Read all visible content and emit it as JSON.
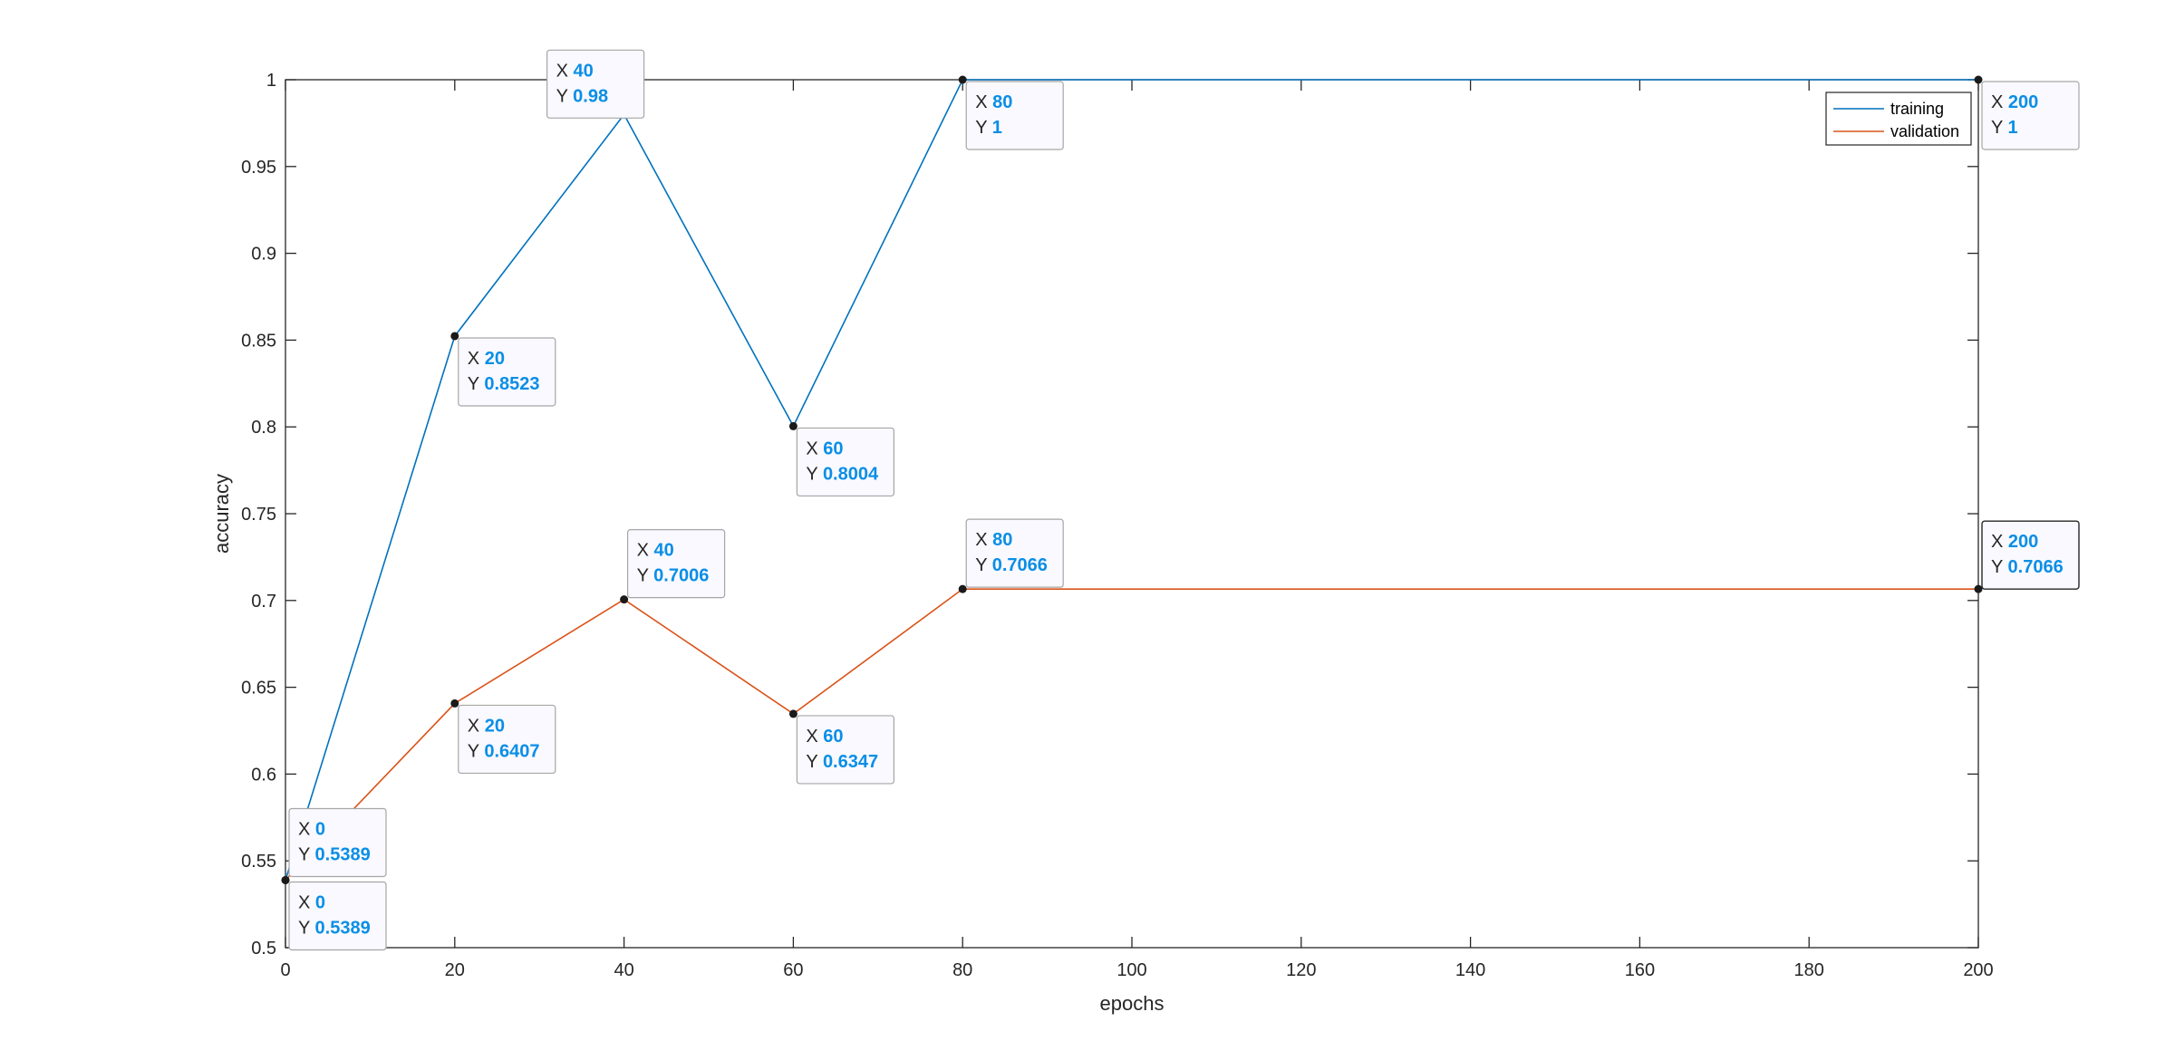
{
  "chart_data": {
    "type": "line",
    "xlabel": "epochs",
    "ylabel": "accuracy",
    "xlim": [
      0,
      200
    ],
    "ylim": [
      0.5,
      1
    ],
    "xticks": [
      0,
      20,
      40,
      60,
      80,
      100,
      120,
      140,
      160,
      180,
      200
    ],
    "yticks": [
      0.5,
      0.55,
      0.6,
      0.65,
      0.7,
      0.75,
      0.8,
      0.85,
      0.9,
      0.95,
      1
    ],
    "grid": false,
    "legend_position": "top-right",
    "series": [
      {
        "name": "training",
        "color": "#0072bd",
        "x": [
          0,
          20,
          40,
          60,
          80,
          200
        ],
        "y": [
          0.5389,
          0.8523,
          0.98,
          0.8004,
          1,
          1
        ]
      },
      {
        "name": "validation",
        "color": "#d95319",
        "x": [
          0,
          20,
          40,
          60,
          80,
          200
        ],
        "y": [
          0.5389,
          0.6407,
          0.7006,
          0.6347,
          0.7066,
          0.7066
        ]
      }
    ],
    "datatips": [
      {
        "series": "training",
        "x_text": "0",
        "y_text": "0.5389",
        "placement": "above-right"
      },
      {
        "series": "training",
        "x_text": "20",
        "y_text": "0.8523",
        "placement": "below-right"
      },
      {
        "series": "training",
        "x_text": "40",
        "y_text": "0.98",
        "placement": "above-left"
      },
      {
        "series": "training",
        "x_text": "60",
        "y_text": "0.8004",
        "placement": "below-right"
      },
      {
        "series": "training",
        "x_text": "80",
        "y_text": "1",
        "placement": "below-right"
      },
      {
        "series": "training",
        "x_text": "200",
        "y_text": "1",
        "placement": "below-right"
      },
      {
        "series": "validation",
        "x_text": "0",
        "y_text": "0.5389",
        "placement": "below-right"
      },
      {
        "series": "validation",
        "x_text": "20",
        "y_text": "0.6407",
        "placement": "below-right"
      },
      {
        "series": "validation",
        "x_text": "40",
        "y_text": "0.7006",
        "placement": "above-right"
      },
      {
        "series": "validation",
        "x_text": "60",
        "y_text": "0.6347",
        "placement": "below-right"
      },
      {
        "series": "validation",
        "x_text": "80",
        "y_text": "0.7066",
        "placement": "above-right"
      },
      {
        "series": "validation",
        "x_text": "200",
        "y_text": "0.7066",
        "placement": "right-selected"
      }
    ],
    "datatip_keys": {
      "x": "X",
      "y": "Y"
    }
  }
}
